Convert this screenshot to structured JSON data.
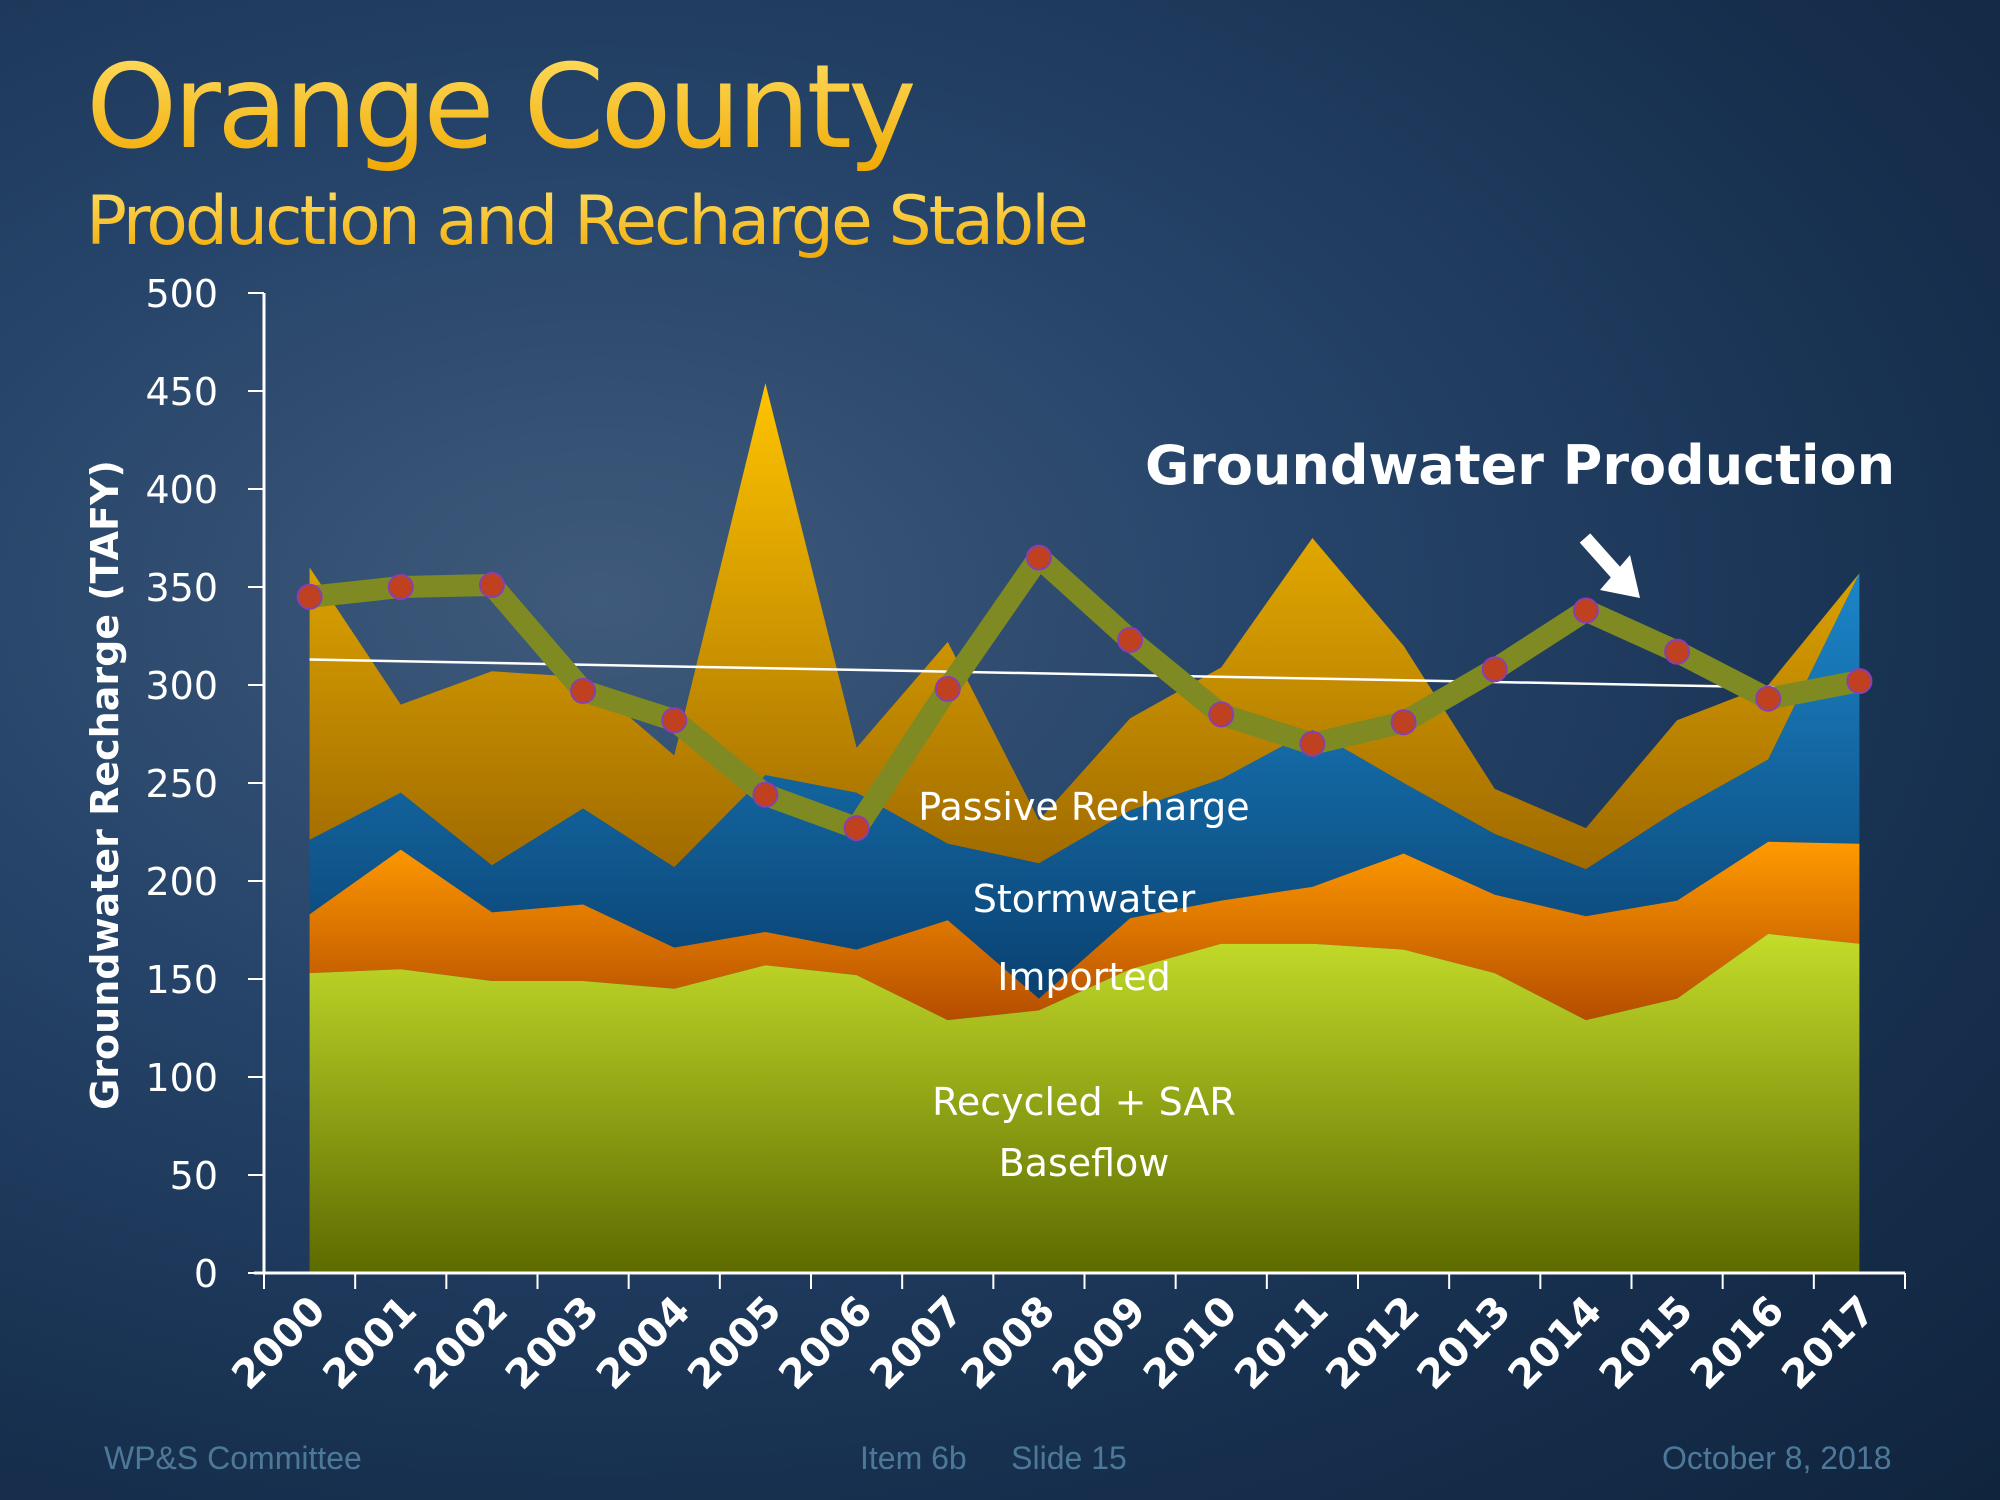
{
  "slide": {
    "title": "Orange County",
    "subtitle": "Production and Recharge Stable",
    "footer_left": "WP&S Committee",
    "footer_center": "Item 6b     Slide 15",
    "footer_right": "October 8, 2018"
  },
  "chart_data": {
    "type": "area",
    "stacked": true,
    "title": "Production and Recharge Stable",
    "xlabel": "",
    "ylabel": "Groundwater Recharge (TAFY)",
    "ylim": [
      0,
      500
    ],
    "yticks": [
      0,
      50,
      100,
      150,
      200,
      250,
      300,
      350,
      400,
      450,
      500
    ],
    "grid": false,
    "categories": [
      "2000",
      "2001",
      "2002",
      "2003",
      "2004",
      "2005",
      "2006",
      "2007",
      "2008",
      "2009",
      "2010",
      "2011",
      "2012",
      "2013",
      "2014",
      "2015",
      "2016",
      "2017"
    ],
    "series": [
      {
        "name": "Recycled + SAR Baseflow",
        "color": "#a8c21a",
        "values": [
          153,
          155,
          149,
          149,
          145,
          157,
          152,
          129,
          134,
          155,
          168,
          168,
          165,
          153,
          129,
          140,
          173,
          168
        ]
      },
      {
        "name": "Imported",
        "color": "#f07f00",
        "values": [
          30,
          61,
          35,
          39,
          21,
          17,
          13,
          51,
          6,
          26,
          22,
          29,
          49,
          40,
          53,
          50,
          47,
          51
        ]
      },
      {
        "name": "Stormwater",
        "color": "#0f5f96",
        "values": [
          38,
          29,
          24,
          49,
          41,
          80,
          80,
          39,
          69,
          55,
          62,
          80,
          36,
          31,
          24,
          46,
          42,
          138
        ]
      },
      {
        "name": "Passive Recharge",
        "color": "#e8a400",
        "values": [
          139,
          45,
          99,
          67,
          57,
          200,
          23,
          103,
          22,
          47,
          57,
          98,
          70,
          23,
          21,
          46,
          38,
          0
        ]
      }
    ],
    "line_series": {
      "name": "Groundwater Production",
      "type": "line",
      "color": "#7f8a22",
      "marker_color": "#c0411f",
      "values": [
        345,
        350,
        351,
        297,
        282,
        244,
        227,
        298,
        365,
        323,
        285,
        270,
        281,
        308,
        338,
        317,
        293,
        302
      ]
    },
    "trendline": {
      "name": "Production trend",
      "color": "#ffffff",
      "start": 313,
      "end": 298
    },
    "annotations": [
      {
        "text": "Groundwater Production",
        "arrow": "down-right",
        "target": "2015"
      },
      {
        "text": "Passive Recharge"
      },
      {
        "text": "Stormwater"
      },
      {
        "text": "Imported"
      },
      {
        "text": "Recycled + SAR"
      },
      {
        "text": "Baseflow"
      }
    ]
  }
}
